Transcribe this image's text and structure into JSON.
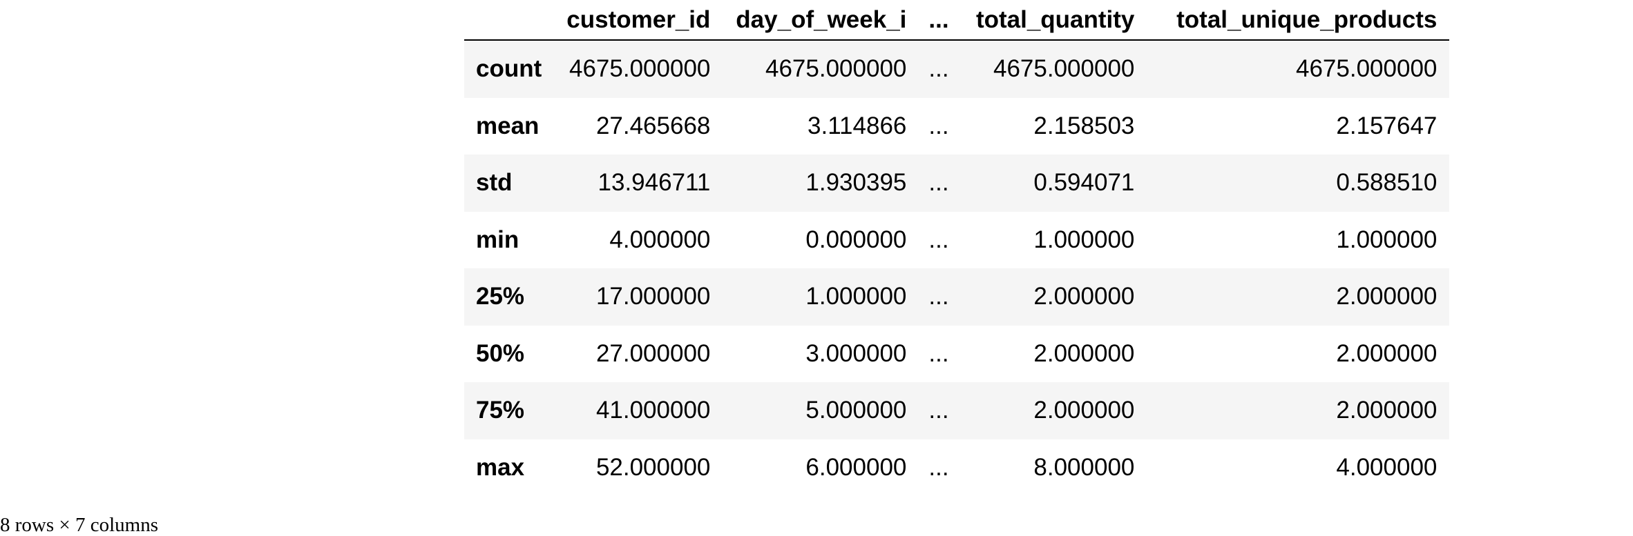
{
  "dataframe": {
    "columns": [
      "customer_id",
      "day_of_week_i",
      "...",
      "total_quantity",
      "total_unique_products"
    ],
    "rows": [
      {
        "index": "count",
        "values": [
          "4675.000000",
          "4675.000000",
          "...",
          "4675.000000",
          "4675.000000"
        ]
      },
      {
        "index": "mean",
        "values": [
          "27.465668",
          "3.114866",
          "...",
          "2.158503",
          "2.157647"
        ]
      },
      {
        "index": "std",
        "values": [
          "13.946711",
          "1.930395",
          "...",
          "0.594071",
          "0.588510"
        ]
      },
      {
        "index": "min",
        "values": [
          "4.000000",
          "0.000000",
          "...",
          "1.000000",
          "1.000000"
        ]
      },
      {
        "index": "25%",
        "values": [
          "17.000000",
          "1.000000",
          "...",
          "2.000000",
          "2.000000"
        ]
      },
      {
        "index": "50%",
        "values": [
          "27.000000",
          "3.000000",
          "...",
          "2.000000",
          "2.000000"
        ]
      },
      {
        "index": "75%",
        "values": [
          "41.000000",
          "5.000000",
          "...",
          "2.000000",
          "2.000000"
        ]
      },
      {
        "index": "max",
        "values": [
          "52.000000",
          "6.000000",
          "...",
          "8.000000",
          "4.000000"
        ]
      }
    ],
    "shape_text": "8 rows × 7 columns"
  }
}
